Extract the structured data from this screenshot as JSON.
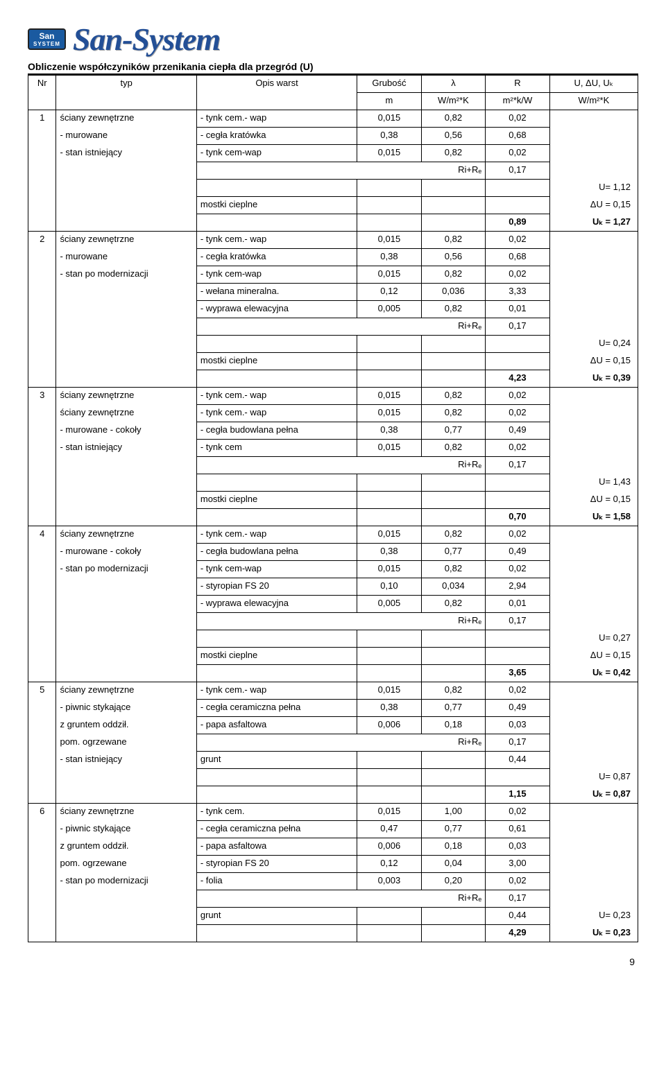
{
  "brand": "San-System",
  "logo_top": "San",
  "logo_bottom": "SYSTEM",
  "title": "Obliczenie współczyników przenikania ciepła dla przegród (U)",
  "headers": {
    "nr": "Nr",
    "typ": "typ",
    "opis": "Opis warst",
    "g1": "Grubość",
    "g2": "m",
    "l1": "λ",
    "l2": "W/m²*K",
    "r1": "R",
    "r2": "m²*k/W",
    "u1": "U, ΔU, Uₖ",
    "u2": "W/m²*K"
  },
  "labels": {
    "sciany": "ściany zewnętrzne",
    "murowane": "- murowane",
    "murowane_cokoly": "- murowane - cokoły",
    "piwnic_styk": "- piwnic stykające",
    "stan_ist": "- stan istniejący",
    "stan_mod": "- stan po modernizacji",
    "z_gruntem": "z gruntem oddził.",
    "pom_ogrz": "pom. ogrzewane",
    "tynk_wap": "- tynk cem.- wap",
    "tynk_cem": "- tynk cem.",
    "tynk_cem_only": "- tynk cem",
    "cegla_krat": "- cegła kratówka",
    "cegla_bud": "- cegła budowlana pełna",
    "cegla_cer": "- cegła ceramiczna pełna",
    "tynk_cw": "- tynk cem-wap",
    "welna": "- wełana mineralna.",
    "wyprawa": "- wyprawa elewacyjna",
    "styropian": "- styropian FS 20",
    "papa": "- papa asfaltowa",
    "folia": "- folia",
    "grunt": "grunt",
    "rire": "Ri+Rₑ",
    "mostki": "mostki cieplne"
  },
  "s1": {
    "nr": "1",
    "r1": {
      "g": "0,015",
      "l": "0,82",
      "r": "0,02"
    },
    "r2": {
      "g": "0,38",
      "l": "0,56",
      "r": "0,68"
    },
    "r3": {
      "g": "0,015",
      "l": "0,82",
      "r": "0,02"
    },
    "rire": "0,17",
    "u": "U= 1,12",
    "du": "ΔU = 0,15",
    "sumR": "0,89",
    "uk": "Uₖ = 1,27"
  },
  "s2": {
    "nr": "2",
    "r1": {
      "g": "0,015",
      "l": "0,82",
      "r": "0,02"
    },
    "r2": {
      "g": "0,38",
      "l": "0,56",
      "r": "0,68"
    },
    "r3": {
      "g": "0,015",
      "l": "0,82",
      "r": "0,02"
    },
    "r4": {
      "g": "0,12",
      "l": "0,036",
      "r": "3,33"
    },
    "r5": {
      "g": "0,005",
      "l": "0,82",
      "r": "0,01"
    },
    "rire": "0,17",
    "u": "U= 0,24",
    "du": "ΔU = 0,15",
    "sumR": "4,23",
    "uk": "Uₖ = 0,39"
  },
  "s3": {
    "nr": "3",
    "r0": {
      "g": "0,015",
      "l": "0,82",
      "r": "0,02"
    },
    "r1": {
      "g": "0,015",
      "l": "0,82",
      "r": "0,02"
    },
    "r2": {
      "g": "0,38",
      "l": "0,77",
      "r": "0,49"
    },
    "r3": {
      "g": "0,015",
      "l": "0,82",
      "r": "0,02"
    },
    "rire": "0,17",
    "u": "U= 1,43",
    "du": "ΔU = 0,15",
    "sumR": "0,70",
    "uk": "Uₖ = 1,58"
  },
  "s4": {
    "nr": "4",
    "r1": {
      "g": "0,015",
      "l": "0,82",
      "r": "0,02"
    },
    "r2": {
      "g": "0,38",
      "l": "0,77",
      "r": "0,49"
    },
    "r3": {
      "g": "0,015",
      "l": "0,82",
      "r": "0,02"
    },
    "r4": {
      "g": "0,10",
      "l": "0,034",
      "r": "2,94"
    },
    "r5": {
      "g": "0,005",
      "l": "0,82",
      "r": "0,01"
    },
    "rire": "0,17",
    "u": "U= 0,27",
    "du": "ΔU = 0,15",
    "sumR": "3,65",
    "uk": "Uₖ = 0,42"
  },
  "s5": {
    "nr": "5",
    "r1": {
      "g": "0,015",
      "l": "0,82",
      "r": "0,02"
    },
    "r2": {
      "g": "0,38",
      "l": "0,77",
      "r": "0,49"
    },
    "r3": {
      "g": "0,006",
      "l": "0,18",
      "r": "0,03"
    },
    "rire": "0,17",
    "grunt_r": "0,44",
    "u": "U= 0,87",
    "sumR": "1,15",
    "uk": "Uₖ = 0,87"
  },
  "s6": {
    "nr": "6",
    "r1": {
      "g": "0,015",
      "l": "1,00",
      "r": "0,02"
    },
    "r2": {
      "g": "0,47",
      "l": "0,77",
      "r": "0,61"
    },
    "r3": {
      "g": "0,006",
      "l": "0,18",
      "r": "0,03"
    },
    "r4": {
      "g": "0,12",
      "l": "0,04",
      "r": "3,00"
    },
    "r5": {
      "g": "0,003",
      "l": "0,20",
      "r": "0,02"
    },
    "rire": "0,17",
    "grunt_r": "0,44",
    "u": "U= 0,23",
    "sumR": "4,29",
    "uk": "Uₖ = 0,23"
  },
  "page_number": "9"
}
